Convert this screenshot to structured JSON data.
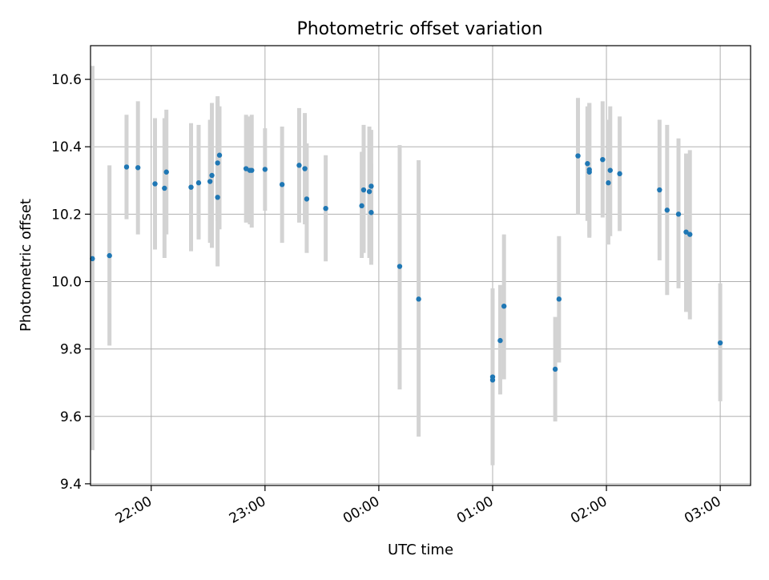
{
  "chart_data": {
    "type": "scatter",
    "title": "Photometric offset variation",
    "xlabel": "UTC time",
    "ylabel": "Photometric offset",
    "x_tick_labels": [
      "22:00",
      "23:00",
      "00:00",
      "01:00",
      "02:00",
      "03:00"
    ],
    "x_ticks_minutes": [
      1320,
      1380,
      1440,
      1500,
      1560,
      1620
    ],
    "y_ticks": [
      9.4,
      9.6,
      9.8,
      10.0,
      10.2,
      10.4,
      10.6
    ],
    "y_tick_labels": [
      "9.4",
      "9.6",
      "9.8",
      "10.0",
      "10.2",
      "10.4",
      "10.6"
    ],
    "xlim": [
      "21:28",
      "03:16"
    ],
    "ylim": [
      9.395,
      10.7
    ],
    "grid": true,
    "point_color": "#1f77b4",
    "errorbar_color": "#d3d3d3",
    "points": [
      {
        "t": "21:29",
        "y": 10.068,
        "lo": 9.5,
        "hi": 10.64
      },
      {
        "t": "21:38",
        "y": 10.077,
        "lo": 9.81,
        "hi": 10.345
      },
      {
        "t": "21:47",
        "y": 10.34,
        "lo": 10.185,
        "hi": 10.495
      },
      {
        "t": "21:53",
        "y": 10.338,
        "lo": 10.14,
        "hi": 10.535
      },
      {
        "t": "22:02",
        "y": 10.29,
        "lo": 10.095,
        "hi": 10.485
      },
      {
        "t": "22:07",
        "y": 10.277,
        "lo": 10.07,
        "hi": 10.485
      },
      {
        "t": "22:08",
        "y": 10.325,
        "lo": 10.14,
        "hi": 10.51
      },
      {
        "t": "22:21",
        "y": 10.28,
        "lo": 10.09,
        "hi": 10.47
      },
      {
        "t": "22:25",
        "y": 10.293,
        "lo": 10.125,
        "hi": 10.465
      },
      {
        "t": "22:31",
        "y": 10.297,
        "lo": 10.115,
        "hi": 10.48
      },
      {
        "t": "22:32",
        "y": 10.315,
        "lo": 10.1,
        "hi": 10.53
      },
      {
        "t": "22:35",
        "y": 10.25,
        "lo": 10.045,
        "hi": 10.55
      },
      {
        "t": "22:35",
        "y": 10.352,
        "lo": 10.18,
        "hi": 10.535
      },
      {
        "t": "22:36",
        "y": 10.375,
        "lo": 10.155,
        "hi": 10.52
      },
      {
        "t": "22:50",
        "y": 10.335,
        "lo": 10.175,
        "hi": 10.495
      },
      {
        "t": "22:52",
        "y": 10.33,
        "lo": 10.17,
        "hi": 10.49
      },
      {
        "t": "22:53",
        "y": 10.33,
        "lo": 10.16,
        "hi": 10.495
      },
      {
        "t": "23:00",
        "y": 10.333,
        "lo": 10.21,
        "hi": 10.455
      },
      {
        "t": "23:09",
        "y": 10.288,
        "lo": 10.115,
        "hi": 10.46
      },
      {
        "t": "23:18",
        "y": 10.345,
        "lo": 10.175,
        "hi": 10.515
      },
      {
        "t": "23:21",
        "y": 10.335,
        "lo": 10.17,
        "hi": 10.5
      },
      {
        "t": "23:22",
        "y": 10.245,
        "lo": 10.085,
        "hi": 10.41
      },
      {
        "t": "23:32",
        "y": 10.217,
        "lo": 10.06,
        "hi": 10.375
      },
      {
        "t": "23:51",
        "y": 10.225,
        "lo": 10.07,
        "hi": 10.385
      },
      {
        "t": "23:52",
        "y": 10.272,
        "lo": 10.085,
        "hi": 10.465
      },
      {
        "t": "23:55",
        "y": 10.267,
        "lo": 10.07,
        "hi": 10.46
      },
      {
        "t": "23:56",
        "y": 10.283,
        "lo": 10.05,
        "hi": 10.45
      },
      {
        "t": "23:56",
        "y": 10.205,
        "lo": 10.06,
        "hi": 10.35
      },
      {
        "t": "00:11",
        "y": 10.045,
        "lo": 9.68,
        "hi": 10.405
      },
      {
        "t": "00:21",
        "y": 9.948,
        "lo": 9.54,
        "hi": 10.36
      },
      {
        "t": "01:00",
        "y": 9.717,
        "lo": 9.455,
        "hi": 9.98
      },
      {
        "t": "01:00",
        "y": 9.708,
        "lo": 9.47,
        "hi": 9.95
      },
      {
        "t": "01:04",
        "y": 9.825,
        "lo": 9.665,
        "hi": 9.99
      },
      {
        "t": "01:06",
        "y": 9.927,
        "lo": 9.71,
        "hi": 10.14
      },
      {
        "t": "01:33",
        "y": 9.74,
        "lo": 9.585,
        "hi": 9.895
      },
      {
        "t": "01:35",
        "y": 9.948,
        "lo": 9.76,
        "hi": 10.135
      },
      {
        "t": "01:45",
        "y": 10.373,
        "lo": 10.2,
        "hi": 10.545
      },
      {
        "t": "01:50",
        "y": 10.35,
        "lo": 10.18,
        "hi": 10.52
      },
      {
        "t": "01:51",
        "y": 10.325,
        "lo": 10.13,
        "hi": 10.53
      },
      {
        "t": "01:51",
        "y": 10.332,
        "lo": 10.135,
        "hi": 10.53
      },
      {
        "t": "01:58",
        "y": 10.362,
        "lo": 10.19,
        "hi": 10.535
      },
      {
        "t": "02:01",
        "y": 10.293,
        "lo": 10.11,
        "hi": 10.48
      },
      {
        "t": "02:02",
        "y": 10.33,
        "lo": 10.135,
        "hi": 10.52
      },
      {
        "t": "02:07",
        "y": 10.32,
        "lo": 10.15,
        "hi": 10.49
      },
      {
        "t": "02:28",
        "y": 10.272,
        "lo": 10.063,
        "hi": 10.48
      },
      {
        "t": "02:32",
        "y": 10.212,
        "lo": 9.96,
        "hi": 10.465
      },
      {
        "t": "02:38",
        "y": 10.2,
        "lo": 9.98,
        "hi": 10.425
      },
      {
        "t": "02:42",
        "y": 10.147,
        "lo": 9.91,
        "hi": 10.38
      },
      {
        "t": "02:44",
        "y": 10.14,
        "lo": 9.888,
        "hi": 10.39
      },
      {
        "t": "03:00",
        "y": 9.818,
        "lo": 9.645,
        "hi": 9.995
      }
    ]
  }
}
